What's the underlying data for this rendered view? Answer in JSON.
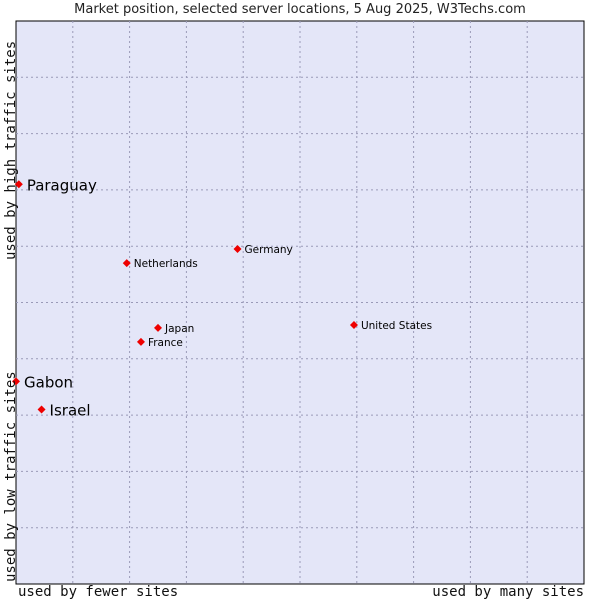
{
  "chart_data": {
    "type": "scatter",
    "title": "Market position, selected server locations, 5 Aug 2025, W3Techs.com",
    "xlabel_low": "used by fewer sites",
    "xlabel_high": "used by many sites",
    "ylabel_low": "used by low traffic sites",
    "ylabel_high": "used by high traffic sites",
    "xlim": [
      0,
      10
    ],
    "ylim": [
      0,
      10
    ],
    "grid": true,
    "colors": {
      "background": "#e4e6f8",
      "point": "#ee0000",
      "grid": "#9a9ab8"
    },
    "points": [
      {
        "label": "Paraguay",
        "x": 0.05,
        "y": 7.1,
        "emphasis": true
      },
      {
        "label": "Gabon",
        "x": 0.0,
        "y": 3.6,
        "emphasis": true
      },
      {
        "label": "Israel",
        "x": 0.45,
        "y": 3.1,
        "emphasis": true
      },
      {
        "label": "Netherlands",
        "x": 1.95,
        "y": 5.7,
        "emphasis": false
      },
      {
        "label": "Germany",
        "x": 3.9,
        "y": 5.95,
        "emphasis": false
      },
      {
        "label": "United States",
        "x": 5.95,
        "y": 4.6,
        "emphasis": false
      },
      {
        "label": "Japan",
        "x": 2.5,
        "y": 4.55,
        "emphasis": false
      },
      {
        "label": "France",
        "x": 2.2,
        "y": 4.3,
        "emphasis": false
      }
    ]
  }
}
